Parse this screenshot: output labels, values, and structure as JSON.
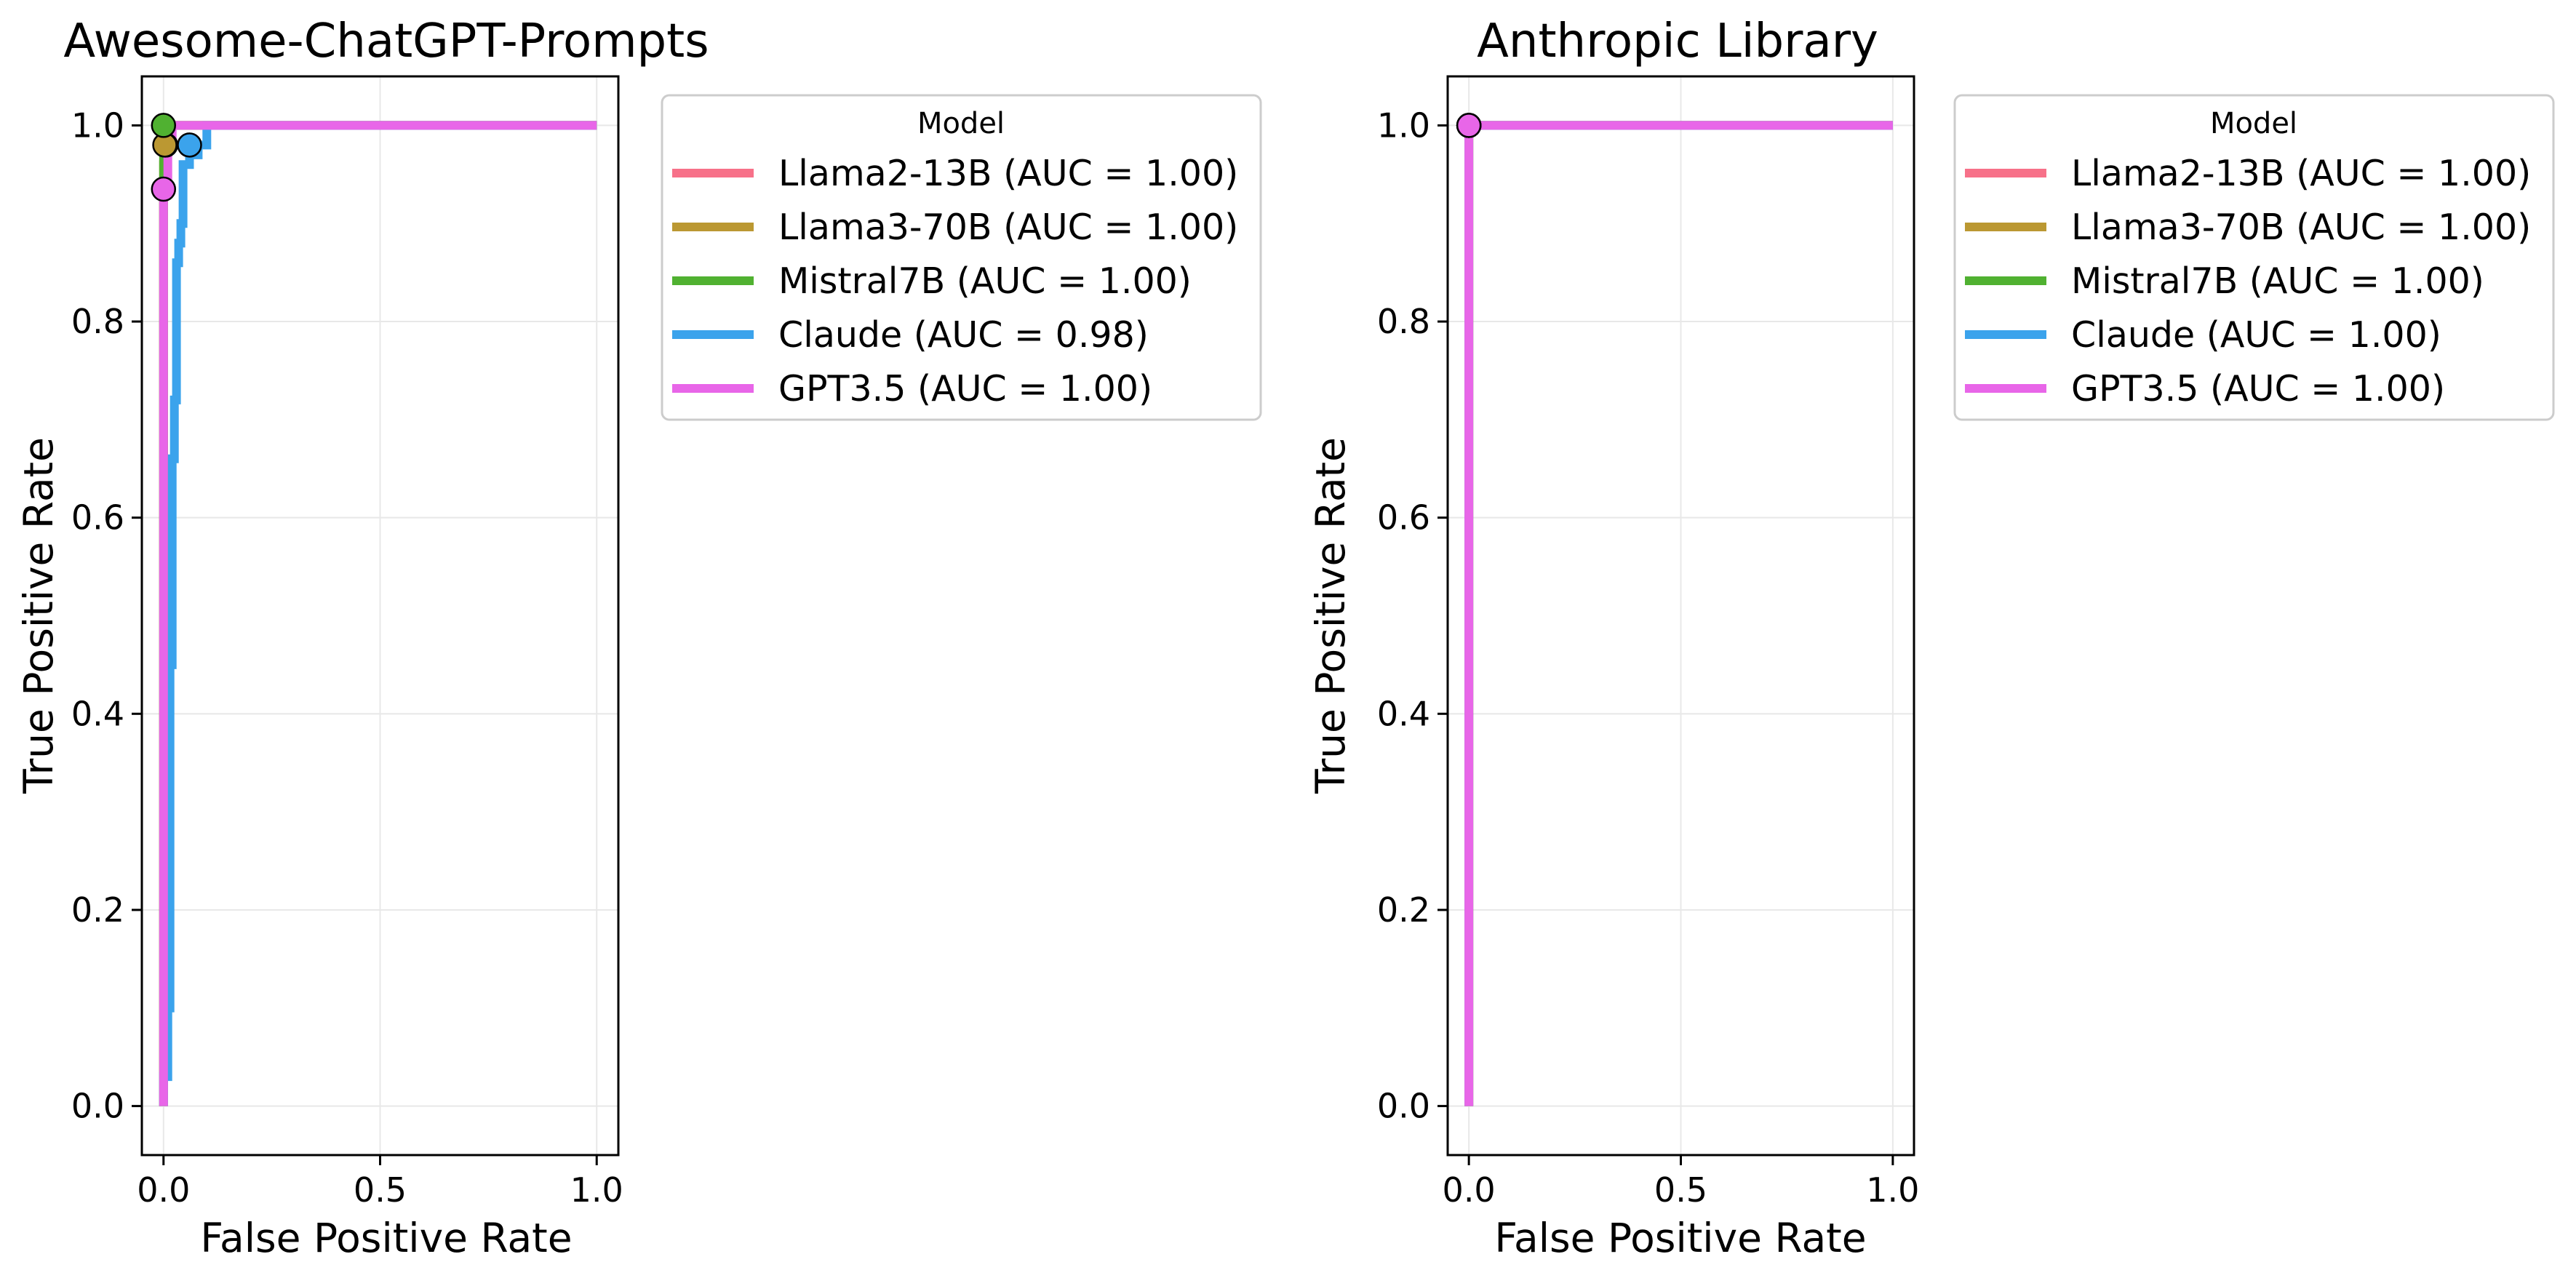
{
  "chart_data": [
    {
      "type": "line",
      "title": "Awesome-ChatGPT-Prompts",
      "xlabel": "False Positive Rate",
      "ylabel": "True Positive Rate",
      "xlim": [
        -0.05,
        1.05
      ],
      "ylim": [
        -0.05,
        1.05
      ],
      "xticks": [
        0.0,
        0.5,
        1.0
      ],
      "xtick_labels": [
        "0.0",
        "0.5",
        "1.0"
      ],
      "yticks": [
        0.0,
        0.2,
        0.4,
        0.6,
        0.8,
        1.0
      ],
      "ytick_labels": [
        "0.0",
        "0.2",
        "0.4",
        "0.6",
        "0.8",
        "1.0"
      ],
      "grid": true,
      "legend": {
        "title": "Model",
        "placement": "outside-top-right"
      },
      "series": [
        {
          "name": "Llama2-13B (AUC = 1.00)",
          "color": "#f77189",
          "x": [
            0,
            0,
            0.005,
            0.005,
            0.01,
            0.01,
            1.0
          ],
          "y": [
            0,
            0.93,
            0.93,
            0.98,
            0.98,
            1.0,
            1.0
          ],
          "marker": {
            "x": 0.005,
            "y": 0.98
          }
        },
        {
          "name": "Llama3-70B (AUC = 1.00)",
          "color": "#bb9832",
          "x": [
            0,
            0,
            0.003,
            0.003,
            0.006,
            0.006,
            1.0
          ],
          "y": [
            0,
            0.96,
            0.96,
            0.98,
            0.98,
            1.0,
            1.0
          ],
          "marker": {
            "x": 0.003,
            "y": 0.98
          }
        },
        {
          "name": "Mistral7B (AUC = 1.00)",
          "color": "#50b131",
          "x": [
            0,
            0,
            1.0
          ],
          "y": [
            0,
            1.0,
            1.0
          ],
          "marker": {
            "x": 0.0,
            "y": 1.0
          }
        },
        {
          "name": "Claude (AUC = 0.98)",
          "color": "#3ba3ec",
          "x": [
            0,
            0,
            0.01,
            0.01,
            0.015,
            0.015,
            0.02,
            0.02,
            0.025,
            0.025,
            0.03,
            0.03,
            0.035,
            0.035,
            0.04,
            0.04,
            0.045,
            0.045,
            0.06,
            0.06,
            0.08,
            0.08,
            0.1,
            0.1,
            1.0
          ],
          "y": [
            0,
            0.03,
            0.03,
            0.1,
            0.1,
            0.45,
            0.45,
            0.66,
            0.66,
            0.72,
            0.72,
            0.86,
            0.86,
            0.88,
            0.88,
            0.9,
            0.9,
            0.96,
            0.96,
            0.97,
            0.97,
            0.98,
            0.98,
            1.0,
            1.0
          ],
          "marker": {
            "x": 0.06,
            "y": 0.98
          }
        },
        {
          "name": "GPT3.5 (AUC = 1.00)",
          "color": "#e866e8",
          "x": [
            0,
            0,
            0.01,
            0.01,
            0.02,
            0.02,
            1.0
          ],
          "y": [
            0,
            0.935,
            0.935,
            0.99,
            0.99,
            1.0,
            1.0
          ],
          "marker": {
            "x": 0.0,
            "y": 0.935
          }
        }
      ]
    },
    {
      "type": "line",
      "title": "Anthropic Library",
      "xlabel": "False Positive Rate",
      "ylabel": "True Positive Rate",
      "xlim": [
        -0.05,
        1.05
      ],
      "ylim": [
        -0.05,
        1.05
      ],
      "xticks": [
        0.0,
        0.5,
        1.0
      ],
      "xtick_labels": [
        "0.0",
        "0.5",
        "1.0"
      ],
      "yticks": [
        0.0,
        0.2,
        0.4,
        0.6,
        0.8,
        1.0
      ],
      "ytick_labels": [
        "0.0",
        "0.2",
        "0.4",
        "0.6",
        "0.8",
        "1.0"
      ],
      "grid": true,
      "legend": {
        "title": "Model",
        "placement": "outside-top-right"
      },
      "series": [
        {
          "name": "Llama2-13B (AUC = 1.00)",
          "color": "#f77189",
          "x": [
            0,
            0,
            1.0
          ],
          "y": [
            0,
            1.0,
            1.0
          ],
          "marker": {
            "x": 0.0,
            "y": 1.0
          }
        },
        {
          "name": "Llama3-70B (AUC = 1.00)",
          "color": "#bb9832",
          "x": [
            0,
            0,
            1.0
          ],
          "y": [
            0,
            1.0,
            1.0
          ],
          "marker": {
            "x": 0.0,
            "y": 1.0
          }
        },
        {
          "name": "Mistral7B (AUC = 1.00)",
          "color": "#50b131",
          "x": [
            0,
            0,
            1.0
          ],
          "y": [
            0,
            1.0,
            1.0
          ],
          "marker": {
            "x": 0.0,
            "y": 1.0
          }
        },
        {
          "name": "Claude (AUC = 1.00)",
          "color": "#3ba3ec",
          "x": [
            0,
            0,
            1.0
          ],
          "y": [
            0,
            1.0,
            1.0
          ],
          "marker": {
            "x": 0.0,
            "y": 1.0
          }
        },
        {
          "name": "GPT3.5 (AUC = 1.00)",
          "color": "#e866e8",
          "x": [
            0,
            0,
            1.0
          ],
          "y": [
            0,
            1.0,
            1.0
          ],
          "marker": {
            "x": 0.0,
            "y": 1.0
          }
        }
      ]
    }
  ]
}
